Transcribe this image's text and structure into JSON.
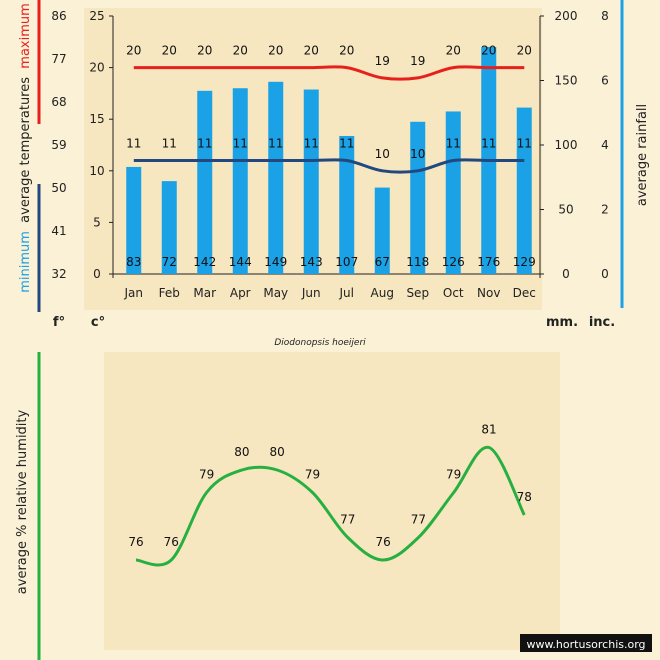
{
  "chart_data": [
    {
      "type": "bar",
      "title": "Diodonopsis hoeijeri",
      "categories": [
        "Jan",
        "Feb",
        "Mar",
        "Apr",
        "May",
        "Jun",
        "Jul",
        "Aug",
        "Sep",
        "Oct",
        "Nov",
        "Dec"
      ],
      "rainfall_mm": [
        83,
        72,
        142,
        144,
        149,
        143,
        107,
        67,
        118,
        126,
        176,
        129
      ],
      "series": [
        {
          "name": "maximum",
          "values": [
            20,
            20,
            20,
            20,
            20,
            20,
            20,
            19,
            19,
            20,
            20,
            20
          ],
          "color": "#e8201c"
        },
        {
          "name": "minimum",
          "values": [
            11,
            11,
            11,
            11,
            11,
            11,
            11,
            10,
            10,
            11,
            11,
            11
          ],
          "color": "#23477f"
        }
      ],
      "bar_color": "#1aa1e6",
      "axes": {
        "fahrenheit": {
          "ticks": [
            "86",
            "77",
            "68",
            "59",
            "50",
            "41",
            "32"
          ],
          "unit": "f°"
        },
        "celsius": {
          "ticks": [
            "25",
            "20",
            "15",
            "10",
            "5",
            "0"
          ],
          "unit": "c°",
          "ylim": [
            0,
            25
          ]
        },
        "mm": {
          "ticks": [
            "200",
            "150",
            "100",
            "50",
            "0"
          ],
          "unit": "mm.",
          "ylim": [
            0,
            200
          ]
        },
        "inches": {
          "ticks": [
            "8",
            "6",
            "4",
            "2",
            "0"
          ],
          "unit": "inc."
        }
      },
      "labels": {
        "maximum": "maximum",
        "temperatures": "average temperatures",
        "minimum": "minimum",
        "rainfall": "average rainfall"
      }
    },
    {
      "type": "line",
      "categories": [
        "Jan",
        "Feb",
        "Mar",
        "Apr",
        "May",
        "Jun",
        "Jul",
        "Aug",
        "Sep",
        "Oct",
        "Nov",
        "Dec"
      ],
      "values": [
        76,
        76,
        79,
        80,
        80,
        79,
        77,
        76,
        77,
        79,
        81,
        78
      ],
      "color": "#27b041",
      "ylabel": "average %  relative humidity"
    }
  ],
  "watermark": "www.hortusorchis.org"
}
